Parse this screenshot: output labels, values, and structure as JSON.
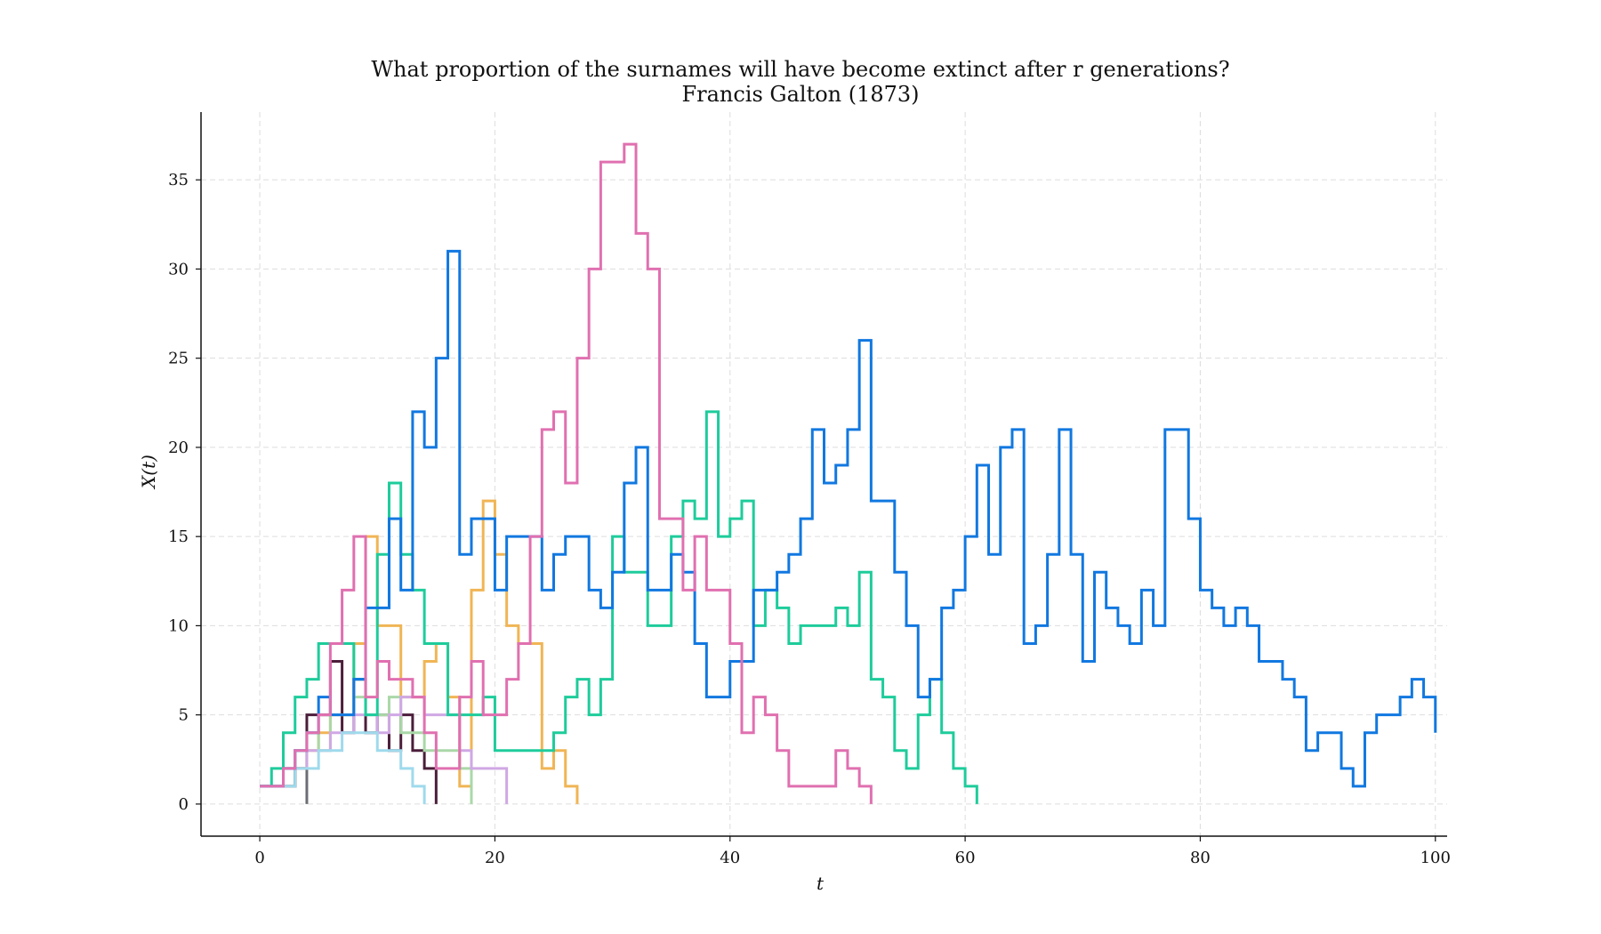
{
  "chart_data": {
    "type": "line",
    "step": true,
    "title": "What proportion of the surnames will have become extinct after r generations?",
    "subtitle": "Francis Galton (1873)",
    "xlabel": "t",
    "ylabel": "X(t)",
    "xlim": [
      -5,
      101
    ],
    "ylim": [
      -1.8,
      38.8
    ],
    "xticks": [
      0,
      20,
      40,
      60,
      80,
      100
    ],
    "yticks": [
      0,
      5,
      10,
      15,
      20,
      25,
      30,
      35
    ],
    "grid": true,
    "legend": "none",
    "series": [
      {
        "color": "#4b1e3a",
        "y": [
          1,
          1,
          1,
          2,
          5,
          5,
          8,
          4,
          7,
          4,
          5,
          3,
          5,
          3,
          2,
          0
        ]
      },
      {
        "color": "#6b6e74",
        "y": [
          1,
          1,
          1,
          2,
          0
        ]
      },
      {
        "color": "#f0b555",
        "y": [
          1,
          1,
          2,
          2,
          3,
          4,
          5,
          5,
          9,
          15,
          10,
          10,
          6,
          6,
          8,
          9,
          6,
          1,
          12,
          17,
          14,
          10,
          9,
          9,
          2,
          3,
          1,
          0
        ]
      },
      {
        "color": "#aad8a8",
        "y": [
          1,
          1,
          2,
          3,
          4,
          3,
          5,
          5,
          6,
          5,
          5,
          6,
          4,
          4,
          3,
          3,
          3,
          2,
          0
        ]
      },
      {
        "color": "#cfa8e4",
        "y": [
          1,
          1,
          2,
          2,
          3,
          3,
          4,
          4,
          5,
          5,
          4,
          5,
          6,
          6,
          5,
          5,
          5,
          3,
          2,
          2,
          2,
          0
        ]
      },
      {
        "color": "#9fdaec",
        "y": [
          1,
          1,
          1,
          2,
          2,
          3,
          3,
          4,
          4,
          4,
          3,
          3,
          2,
          1,
          0
        ]
      },
      {
        "color": "#1ecc9b",
        "y": [
          1,
          2,
          4,
          6,
          7,
          9,
          9,
          9,
          7,
          5,
          14,
          18,
          14,
          12,
          9,
          9,
          5,
          5,
          5,
          6,
          3,
          3,
          3,
          3,
          3,
          4,
          6,
          7,
          5,
          7,
          15,
          13,
          13,
          10,
          10,
          15,
          17,
          16,
          22,
          15,
          16,
          17,
          10,
          12,
          11,
          9,
          10,
          10,
          10,
          11,
          10,
          13,
          7,
          6,
          3,
          2,
          5,
          7,
          4,
          2,
          1,
          0
        ]
      },
      {
        "color": "#1178e0",
        "y": [
          1,
          1,
          2,
          3,
          4,
          6,
          5,
          5,
          7,
          11,
          11,
          16,
          12,
          22,
          20,
          25,
          31,
          14,
          16,
          16,
          12,
          15,
          15,
          15,
          12,
          14,
          15,
          15,
          12,
          11,
          13,
          18,
          20,
          12,
          12,
          14,
          13,
          9,
          6,
          6,
          8,
          8,
          12,
          12,
          13,
          14,
          16,
          21,
          18,
          19,
          21,
          26,
          17,
          17,
          13,
          10,
          6,
          7,
          11,
          12,
          15,
          19,
          14,
          20,
          21,
          9,
          10,
          14,
          21,
          14,
          8,
          13,
          11,
          10,
          9,
          12,
          10,
          21,
          21,
          16,
          12,
          11,
          10,
          11,
          10,
          8,
          8,
          7,
          6,
          3,
          4,
          4,
          2,
          1,
          4,
          5,
          5,
          6,
          7,
          6,
          4
        ]
      },
      {
        "color": "#e070b0",
        "y": [
          1,
          1,
          2,
          3,
          4,
          5,
          9,
          12,
          15,
          6,
          8,
          7,
          7,
          6,
          4,
          2,
          2,
          6,
          8,
          5,
          5,
          7,
          9,
          15,
          21,
          22,
          18,
          25,
          30,
          36,
          36,
          37,
          32,
          30,
          16,
          16,
          12,
          15,
          12,
          12,
          9,
          4,
          6,
          5,
          3,
          1,
          1,
          1,
          1,
          3,
          2,
          1,
          0
        ]
      }
    ]
  }
}
